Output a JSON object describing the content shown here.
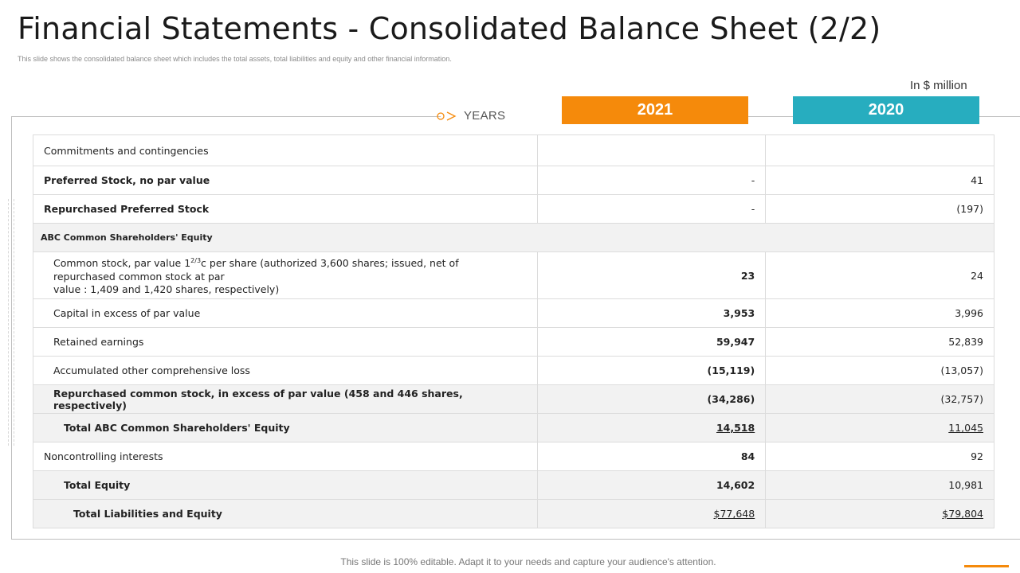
{
  "header": {
    "title": "Financial Statements - Consolidated Balance Sheet (2/2)",
    "subtitle": "This slide shows the consolidated balance sheet which includes the total assets, total liabilities and equity and other financial information.",
    "unit": "In $ million",
    "years_label": "YEARS",
    "year_1": "2021",
    "year_2": "2020"
  },
  "colors": {
    "accent_orange": "#f58a0b",
    "accent_teal": "#27adbf"
  },
  "rows": [
    {
      "label": "Commitments and contingencies",
      "v2021": "",
      "v2020": ""
    },
    {
      "label": "Preferred Stock, no par value",
      "v2021": "-",
      "v2020": "41"
    },
    {
      "label": "Repurchased Preferred Stock",
      "v2021": "-",
      "v2020": "(197)"
    },
    {
      "label": "ABC Common Shareholders' Equity"
    },
    {
      "label_a": "Common stock, par value 1",
      "label_sup": "2/3",
      "label_b": "c per share (authorized 3,600 shares; issued, net of",
      "label_line2": "repurchased  common stock at par",
      "label_line3": "value : 1,409 and 1,420 shares, respectively)",
      "v2021": "23",
      "v2020": "24"
    },
    {
      "label": "Capital in excess  of par value",
      "v2021": "3,953",
      "v2020": "3,996"
    },
    {
      "label": "Retained earnings",
      "v2021": "59,947",
      "v2020": "52,839"
    },
    {
      "label": "Accumulated other comprehensive  loss",
      "v2021": "(15,119)",
      "v2020": "(13,057)"
    },
    {
      "label": "Repurchased common  stock, in excess  of par value (458 and 446 shares, respectively)",
      "v2021": "(34,286)",
      "v2020": "(32,757)"
    },
    {
      "label": "Total ABC Common  Shareholders' Equity",
      "v2021": "14,518",
      "v2020": "11,045"
    },
    {
      "label": "Noncontrolling interests",
      "v2021": "84",
      "v2020": "92"
    },
    {
      "label": "Total Equity",
      "v2021": "14,602",
      "v2020": "10,981"
    },
    {
      "label": "Total Liabilities and Equity",
      "v2021": "$77,648",
      "v2020": "$79,804"
    }
  ],
  "footer": {
    "text": "This slide is 100% editable. Adapt it to your needs and capture your audience's attention."
  }
}
